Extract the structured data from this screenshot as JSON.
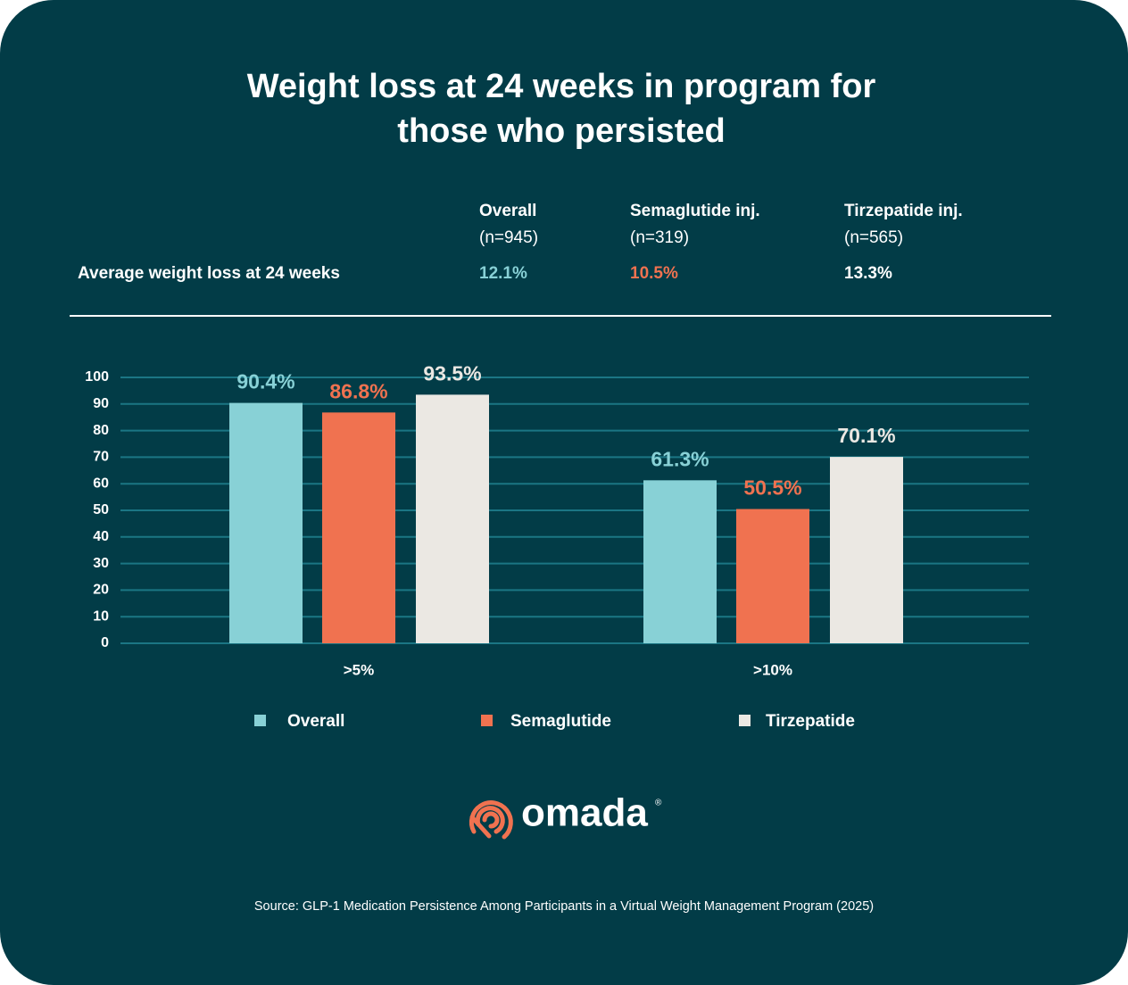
{
  "chart_data": {
    "type": "bar",
    "title": "Weight loss at 24 weeks in program for those who persisted",
    "categories": [
      ">5%",
      ">10%"
    ],
    "series": [
      {
        "name": "Overall",
        "color": "#88d1d6",
        "values": [
          90.4,
          61.3
        ],
        "value_labels": [
          "90.4%",
          "61.3%"
        ]
      },
      {
        "name": "Semaglutide",
        "color": "#f07250",
        "values": [
          86.8,
          50.5
        ],
        "value_labels": [
          "86.8%",
          "50.5%"
        ]
      },
      {
        "name": "Tirzepatide",
        "color": "#ebe8e3",
        "values": [
          93.5,
          70.1
        ],
        "value_labels": [
          "93.5%",
          "70.1%"
        ]
      }
    ],
    "ylim": [
      0,
      100
    ],
    "yticks": [
      0,
      10,
      20,
      30,
      40,
      50,
      60,
      70,
      80,
      90,
      100
    ],
    "grid": true
  },
  "summary": {
    "columns": [
      {
        "name": "Overall",
        "n": "(n=945)"
      },
      {
        "name": "Semaglutide inj.",
        "n": "(n=319)"
      },
      {
        "name": "Tirzepatide inj.",
        "n": "(n=565)"
      }
    ],
    "row_label": "Average weight loss at 24 weeks",
    "values": [
      "12.1%",
      "10.5%",
      "13.3%"
    ]
  },
  "logo": {
    "name": "omada",
    "mark": "®"
  },
  "source": "Source: GLP-1 Medication Persistence Among Participants in a Virtual Weight Management Program (2025)"
}
